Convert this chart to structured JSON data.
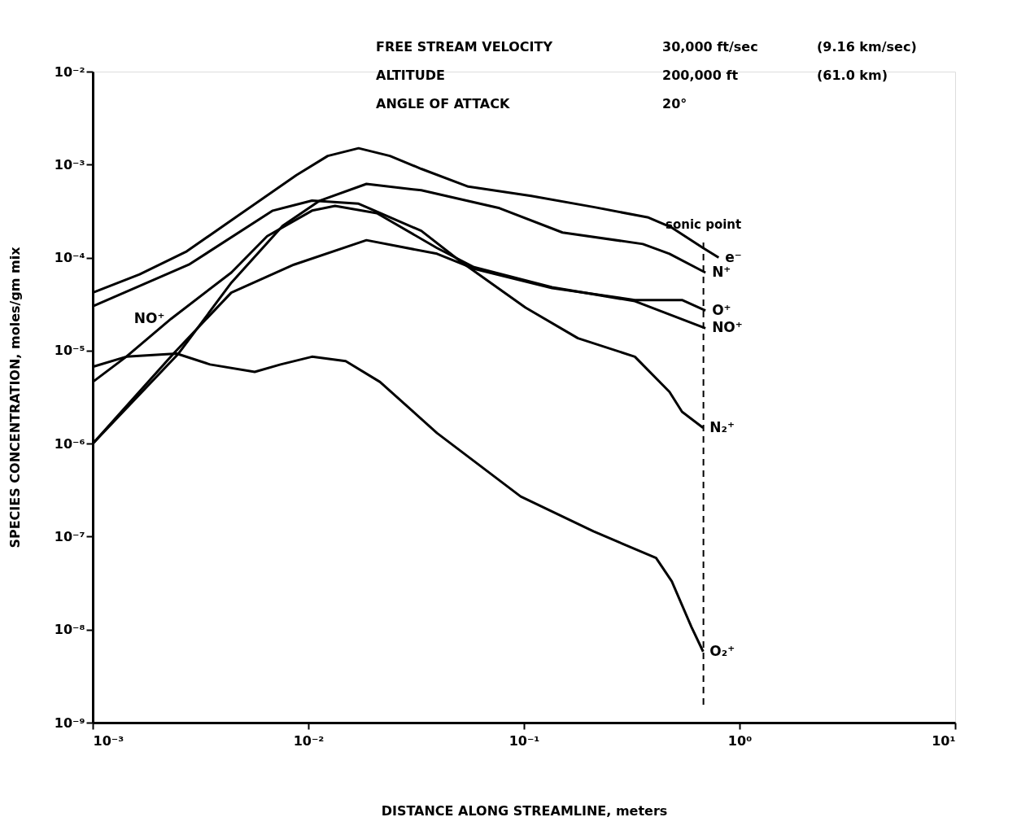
{
  "chart_data": {
    "type": "line",
    "xlabel": "DISTANCE ALONG STREAMLINE, meters",
    "ylabel": "SPECIES CONCENTRATION, moles/gm mix",
    "log": "xy",
    "grid": false,
    "xlim": [
      0.001,
      10
    ],
    "ylim": [
      1e-09,
      0.01
    ],
    "xticks": [
      {
        "value": 0.001,
        "label": "10⁻³"
      },
      {
        "value": 0.01,
        "label": "10⁻²"
      },
      {
        "value": 0.1,
        "label": "10⁻¹"
      },
      {
        "value": 1,
        "label": "10⁰"
      },
      {
        "value": 10,
        "label": "10¹"
      }
    ],
    "yticks": [
      {
        "value": 1e-09,
        "label": "10⁻⁹"
      },
      {
        "value": 1e-08,
        "label": "10⁻⁸"
      },
      {
        "value": 1e-07,
        "label": "10⁻⁷"
      },
      {
        "value": 1e-06,
        "label": "10⁻⁶"
      },
      {
        "value": 1e-05,
        "label": "10⁻⁵"
      },
      {
        "value": 0.0001,
        "label": "10⁻⁴"
      },
      {
        "value": 0.001,
        "label": "10⁻³"
      },
      {
        "value": 0.01,
        "label": "10⁻²"
      }
    ],
    "series": [
      {
        "name": "e⁻",
        "color": "#000000",
        "x": [
          0.001,
          0.00165,
          0.00273,
          0.0049,
          0.0088,
          0.0123,
          0.0171,
          0.0239,
          0.0334,
          0.0552,
          0.108,
          0.21,
          0.378,
          0.485,
          0.678,
          0.8
        ],
        "values": [
          4.2e-05,
          6.6e-05,
          0.000117,
          0.0003,
          0.00077,
          0.00124,
          0.0015,
          0.00124,
          0.0009,
          0.00058,
          0.00046,
          0.00035,
          0.00027,
          0.00021,
          0.000127,
          0.0001
        ]
      },
      {
        "name": "N⁺",
        "color": "#000000",
        "x": [
          0.001,
          0.0025,
          0.0044,
          0.0076,
          0.0113,
          0.0186,
          0.0334,
          0.077,
          0.151,
          0.356,
          0.473,
          0.695
        ],
        "values": [
          1e-06,
          9.3e-06,
          5.4e-05,
          0.00022,
          0.00041,
          0.00062,
          0.00053,
          0.00034,
          0.000186,
          0.00014,
          0.00011,
          6.9e-05
        ]
      },
      {
        "name": "O⁺",
        "color": "#000000",
        "x": [
          0.001,
          0.00237,
          0.00439,
          0.00857,
          0.0186,
          0.0395,
          0.0586,
          0.135,
          0.327,
          0.541,
          0.695
        ],
        "values": [
          1e-06,
          9.3e-06,
          4.2e-05,
          8.4e-05,
          0.000154,
          0.00011,
          7.6e-05,
          4.7e-05,
          3.5e-05,
          3.5e-05,
          2.7e-05
        ]
      },
      {
        "name": "NO⁺",
        "color": "#000000",
        "x": [
          0.001,
          0.00143,
          0.00231,
          0.00439,
          0.00644,
          0.0104,
          0.0133,
          0.0208,
          0.0395,
          0.0586,
          0.135,
          0.327,
          0.695
        ],
        "values": [
          4.6e-06,
          8.6e-06,
          2.2e-05,
          6.9e-05,
          0.00017,
          0.00032,
          0.00036,
          0.0003,
          0.000127,
          7.9e-05,
          4.8e-05,
          3.4e-05,
          1.74e-05
        ]
      },
      {
        "name": "N₂⁺",
        "color": "#000000",
        "x": [
          0.001,
          0.00279,
          0.00684,
          0.0104,
          0.0171,
          0.0334,
          0.0508,
          0.1017,
          0.178,
          0.327,
          0.473,
          0.541,
          0.678
        ],
        "values": [
          3e-05,
          8.4e-05,
          0.00032,
          0.00041,
          0.00038,
          0.000194,
          9.1e-05,
          2.9e-05,
          1.36e-05,
          8.6e-06,
          3.6e-06,
          2.2e-06,
          1.48e-06
        ]
      },
      {
        "name": "O₂⁺",
        "color": "#000000",
        "x": [
          0.001,
          0.00143,
          0.00245,
          0.0035,
          0.00564,
          0.00743,
          0.0104,
          0.0149,
          0.0215,
          0.0395,
          0.0966,
          0.21,
          0.41,
          0.485,
          0.598,
          0.678
        ],
        "values": [
          6.7e-06,
          8.6e-06,
          9.3e-06,
          7.1e-06,
          5.9e-06,
          7.1e-06,
          8.6e-06,
          7.7e-06,
          4.6e-06,
          1.3e-06,
          2.7e-07,
          1.14e-07,
          5.9e-08,
          3.3e-08,
          1.07e-08,
          5.8e-09
        ]
      }
    ],
    "ref_lines": [
      {
        "axis": "x",
        "value": 0.68,
        "label": "sonic point",
        "color": "#000000",
        "line_style": "dashed"
      }
    ],
    "annotations": [
      "FREE STREAM VELOCITY",
      "30,000 ft/sec",
      "(9.16 km/sec)",
      "ALTITUDE",
      "200,000 ft",
      "(61.0 km)",
      "ANGLE OF ATTACK",
      "20°",
      {
        "text": "NO⁺",
        "x": 0.00231,
        "y": 2.2e-05
      }
    ]
  }
}
